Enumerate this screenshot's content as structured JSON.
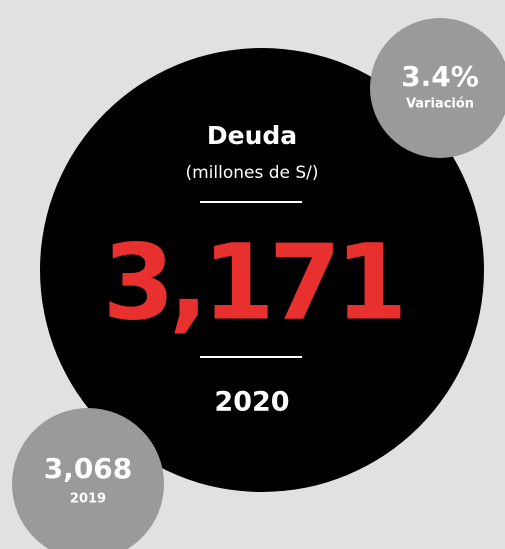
{
  "main": {
    "title": "Deuda",
    "subtitle": "(millones de S/)",
    "value": "3,171",
    "year": "2020"
  },
  "variation": {
    "value": "3.4%",
    "label": "Variación"
  },
  "previous": {
    "value": "3,068",
    "year": "2019"
  }
}
